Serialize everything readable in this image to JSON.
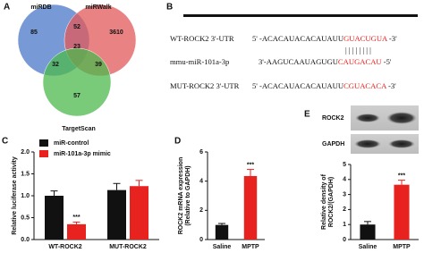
{
  "chart_data": [
    {
      "type": "venn",
      "panel_label": "A",
      "sets": [
        {
          "name": "miRDB",
          "color": "#4a78c8"
        },
        {
          "name": "miRWalk",
          "color": "#e2585a"
        },
        {
          "name": "TargetScan",
          "color": "#4cb84c"
        }
      ],
      "values": [
        85,
        52,
        3610,
        23,
        32,
        39,
        57
      ]
    },
    {
      "type": "bar",
      "panel_label": "C",
      "ylabel": [
        "Relative luciferase activity"
      ],
      "categories": [
        "WT-ROCK2",
        "MUT-ROCK2"
      ],
      "series": [
        {
          "name": "miR-control",
          "color": "#111111",
          "values": [
            1.0,
            1.13
          ],
          "errors": [
            0.11,
            0.15
          ],
          "significance": [
            null,
            null
          ]
        },
        {
          "name": "miR-101a-3p mimic",
          "color": "#e8231f",
          "values": [
            0.35,
            1.22
          ],
          "errors": [
            0.05,
            0.13
          ],
          "significance": [
            "***",
            null
          ]
        }
      ],
      "ylim": [
        0,
        2
      ],
      "yticks": [
        {
          "value": 0,
          "label": "0.0"
        },
        {
          "value": 0.5,
          "label": "0.5"
        },
        {
          "value": 1,
          "label": "1.0"
        },
        {
          "value": 1.5,
          "label": "1.5"
        },
        {
          "value": 2,
          "label": "2.0"
        }
      ],
      "legend": "top-left"
    },
    {
      "type": "bar",
      "panel_label": "D",
      "ylabel": [
        "ROCK2 mRNA expression",
        "(Relative to GAPDH)"
      ],
      "categories": [
        "Saline",
        "MPTP"
      ],
      "series": [
        {
          "colors": [
            "#111111",
            "#e8231f"
          ],
          "values": [
            1.0,
            4.35
          ],
          "errors": [
            0.1,
            0.45
          ],
          "significance": [
            null,
            "***"
          ]
        }
      ],
      "ylim": [
        0,
        6
      ],
      "yticks": [
        0,
        2,
        4,
        6
      ]
    },
    {
      "type": "bar",
      "panel_label": "E",
      "ylabel": [
        "Relative density of",
        "ROCK2/(GAPDH)"
      ],
      "categories": [
        "Saline",
        "MPTP"
      ],
      "series": [
        {
          "colors": [
            "#111111",
            "#e8231f"
          ],
          "values": [
            1.0,
            3.65
          ],
          "errors": [
            0.2,
            0.3
          ],
          "significance": [
            null,
            "***"
          ]
        }
      ],
      "ylim": [
        0,
        5
      ],
      "yticks": [
        0,
        1,
        2,
        3,
        4,
        5
      ]
    }
  ],
  "sequence_panel": {
    "panel_label": "B",
    "rows": [
      {
        "label": "WT-ROCK2 3'-UTR",
        "parts": [
          {
            "text": "5' -ACACAUACACAUAUU",
            "color": "#111111"
          },
          {
            "text": "GUACUGUA",
            "color": "#e8231f"
          },
          {
            "text": " -3'",
            "color": "#111111"
          }
        ]
      },
      {
        "label": "mmu-miR-101a-3p",
        "parts": [
          {
            "text": "3'-AAGUCAAUAGUGU",
            "color": "#111111"
          },
          {
            "text": "CAUGACAU",
            "color": "#e8231f"
          },
          {
            "text": " -5'",
            "color": "#111111"
          }
        ]
      },
      {
        "label": "MUT-ROCK2 3'-UTR",
        "parts": [
          {
            "text": "5' -ACACAUACACAUAUU",
            "color": "#111111"
          },
          {
            "text": "CGUACACA",
            "color": "#e8231f"
          },
          {
            "text": " -3'",
            "color": "#111111"
          }
        ]
      }
    ],
    "pairing": "| | | | | | | |"
  },
  "blot_panel": {
    "labels": [
      "ROCK2",
      "GAPDH"
    ]
  }
}
